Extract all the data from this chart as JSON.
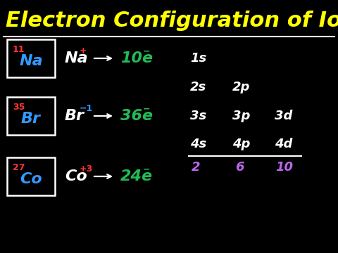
{
  "bg_color": "#000000",
  "title": "Electron Configuration of Ions",
  "title_color": "#FFFF00",
  "title_fontsize": 22,
  "line_color": "#FFFFFF",
  "elements": [
    {
      "atomic_num": "11",
      "symbol": "Na",
      "num_color": "#FF3333",
      "sym_color": "#3399FF"
    },
    {
      "atomic_num": "35",
      "symbol": "Br",
      "num_color": "#FF3333",
      "sym_color": "#3399FF"
    },
    {
      "atomic_num": "27",
      "symbol": "Co",
      "num_color": "#FF3333",
      "sym_color": "#3399FF"
    }
  ],
  "reactions": [
    {
      "ion": "Na",
      "charge": "+",
      "charge_color": "#FF3333",
      "electrons": "10e",
      "electron_color": "#22BB55"
    },
    {
      "ion": "Br",
      "charge": "−1",
      "charge_color": "#3399FF",
      "electrons": "36e",
      "electron_color": "#22BB55"
    },
    {
      "ion": "Co",
      "charge": "+3",
      "charge_color": "#FF3333",
      "electrons": "24e",
      "electron_color": "#22BB55"
    }
  ],
  "orbital_color": "#FFFFFF",
  "subshell_values": [
    "2",
    "6",
    "10"
  ],
  "subshell_color": "#BB66EE",
  "box_color": "#FFFFFF"
}
